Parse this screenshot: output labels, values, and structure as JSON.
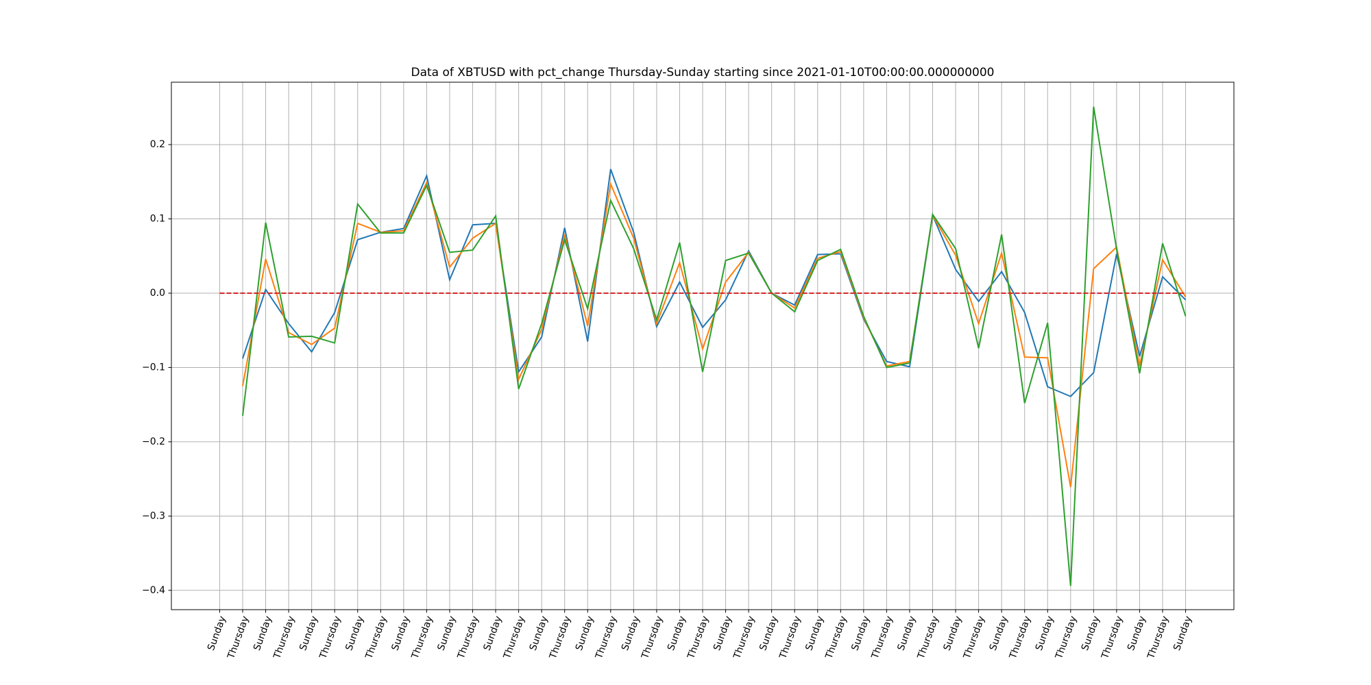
{
  "chart_data": {
    "type": "line",
    "title": "Data of XBTUSD with pct_change Thursday-Sunday starting since 2021-01-10T00:00:00.000000000",
    "categories": [
      "Sunday",
      "Thursday",
      "Sunday",
      "Thursday",
      "Sunday",
      "Thursday",
      "Sunday",
      "Thursday",
      "Sunday",
      "Thursday",
      "Sunday",
      "Thursday",
      "Sunday",
      "Thursday",
      "Sunday",
      "Thursday",
      "Sunday",
      "Thursday",
      "Sunday",
      "Thursday",
      "Sunday",
      "Thursday",
      "Sunday",
      "Thursday",
      "Sunday",
      "Thursday",
      "Sunday",
      "Thursday",
      "Sunday",
      "Thursday",
      "Sunday",
      "Thursday",
      "Sunday",
      "Thursday",
      "Sunday",
      "Thursday",
      "Sunday",
      "Thursday",
      "Sunday",
      "Thursday",
      "Sunday",
      "Thursday",
      "Sunday"
    ],
    "series": [
      {
        "color": "#1f77b4",
        "values": [
          null,
          -0.088,
          0.005,
          -0.041,
          -0.079,
          -0.026,
          0.072,
          0.082,
          0.087,
          0.158,
          0.018,
          0.092,
          0.094,
          -0.106,
          -0.059,
          0.088,
          -0.065,
          0.167,
          0.082,
          -0.045,
          0.015,
          -0.046,
          -0.009,
          0.057,
          0.0,
          -0.016,
          0.052,
          0.053,
          -0.035,
          -0.092,
          -0.099,
          0.105,
          0.032,
          -0.011,
          0.029,
          -0.026,
          -0.126,
          -0.139,
          -0.107,
          0.053,
          -0.085,
          0.022,
          -0.009
        ]
      },
      {
        "color": "#ff7f0e",
        "values": [
          null,
          -0.125,
          0.046,
          -0.053,
          -0.069,
          -0.047,
          0.094,
          0.082,
          0.084,
          0.149,
          0.035,
          0.074,
          0.094,
          -0.116,
          -0.049,
          0.079,
          -0.044,
          0.147,
          0.074,
          -0.041,
          0.041,
          -0.075,
          0.015,
          0.055,
          0.0,
          -0.02,
          0.047,
          0.056,
          -0.033,
          -0.098,
          -0.092,
          0.105,
          0.051,
          -0.041,
          0.054,
          -0.086,
          -0.087,
          -0.261,
          0.033,
          0.062,
          -0.098,
          0.045,
          -0.005
        ]
      },
      {
        "color": "#2ca02c",
        "values": [
          null,
          -0.165,
          0.095,
          -0.059,
          -0.058,
          -0.067,
          0.12,
          0.081,
          0.081,
          0.145,
          0.055,
          0.058,
          0.104,
          -0.129,
          -0.041,
          0.072,
          -0.021,
          0.125,
          0.06,
          -0.036,
          0.068,
          -0.106,
          0.044,
          0.054,
          0.0,
          -0.025,
          0.044,
          0.059,
          -0.031,
          -0.1,
          -0.094,
          0.106,
          0.06,
          -0.074,
          0.079,
          -0.148,
          -0.04,
          -0.394,
          0.251,
          0.059,
          -0.108,
          0.067,
          -0.031
        ]
      }
    ],
    "hline": {
      "y": 0,
      "color": "#d62728",
      "dashed": true
    },
    "ylim": [
      -0.426,
      0.284
    ],
    "yticks": [
      {
        "value": -0.4,
        "label": "−0.4"
      },
      {
        "value": -0.3,
        "label": "−0.3"
      },
      {
        "value": -0.2,
        "label": "−0.2"
      },
      {
        "value": -0.1,
        "label": "−0.1"
      },
      {
        "value": 0,
        "label": "0.0"
      },
      0.1,
      0.2
    ],
    "grid": true
  }
}
